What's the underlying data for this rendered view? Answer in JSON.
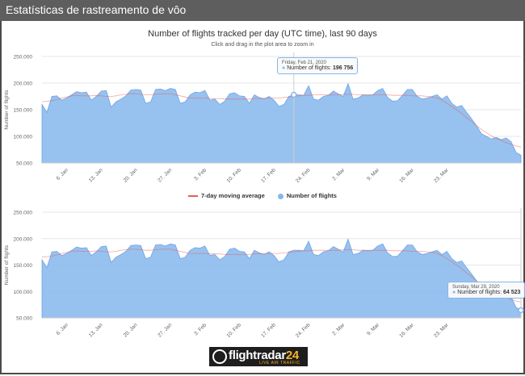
{
  "window": {
    "title": "Estatísticas de rastreamento de vôo"
  },
  "chart_header": {
    "title": "Number of flights tracked per day (UTC time), last 90 days",
    "subtitle": "Click and drag in the plot area to zoom in"
  },
  "legend": {
    "items": [
      "7-day moving average",
      "Number of flights"
    ]
  },
  "colors": {
    "area": "#85b6ec",
    "moving_average": "#f05a4b",
    "titlebar": "#5e5e5e"
  },
  "tooltips": {
    "top": {
      "date": "Friday, Feb 21, 2020",
      "label": "Number of flights:",
      "value": "196 756"
    },
    "bottom": {
      "date": "Sunday, Mar 29, 2020",
      "label": "Number of flights:",
      "value": "64 523"
    }
  },
  "logo": {
    "brand": "flightradar",
    "brand_num": "24",
    "tagline": "LIVE AIR TRAFFIC"
  },
  "chart_data": [
    {
      "type": "area",
      "ylabel": "Number of flights",
      "ylim": [
        50000,
        250000
      ],
      "yticks": [
        "250.000",
        "200.000",
        "150.000",
        "100.000",
        "50.000"
      ],
      "xtick_labels": [
        "6. Jan",
        "13. Jan",
        "20. Jan",
        "27. Jan",
        "3. Feb",
        "10. Feb",
        "17. Feb",
        "24. Feb",
        "2. Mar",
        "9. Mar",
        "16. Mar",
        "23. Mar"
      ],
      "x_start": "Jan 1, 2020",
      "x_end": "Mar 29, 2020",
      "series": [
        {
          "name": "Number of flights",
          "values": [
            160000,
            145000,
            175000,
            176000,
            168000,
            172000,
            178000,
            184000,
            182000,
            183000,
            168000,
            175000,
            185000,
            186000,
            155000,
            165000,
            170000,
            176000,
            187000,
            188000,
            187000,
            162000,
            165000,
            188000,
            189000,
            186000,
            190000,
            188000,
            162000,
            165000,
            178000,
            183000,
            182000,
            186000,
            168000,
            170000,
            160000,
            166000,
            180000,
            182000,
            176000,
            175000,
            162000,
            178000,
            173000,
            170000,
            175000,
            168000,
            156000,
            160000,
            175000,
            178000,
            178000,
            177000,
            195000,
            170000,
            168000,
            175000,
            177000,
            185000,
            180000,
            175000,
            199000,
            170000,
            172000,
            178000,
            177000,
            178000,
            186000,
            190000,
            173000,
            166000,
            167000,
            177000,
            188000,
            188000,
            175000,
            170000,
            172000,
            175000,
            178000,
            170000,
            176000,
            162000,
            155000,
            158000,
            145000,
            133000,
            120000,
            105000,
            100000,
            95000,
            98000,
            94000,
            97000,
            90000,
            70000,
            64523
          ]
        },
        {
          "name": "7-day moving average",
          "values": [
            165000,
            166000,
            167000,
            169000,
            172000,
            174000,
            176000,
            177000,
            176000,
            176000,
            176000,
            177000,
            176000,
            175000,
            175000,
            176000,
            178000,
            179000,
            180000,
            180000,
            179000,
            178000,
            178000,
            179000,
            180000,
            180000,
            180000,
            178000,
            176000,
            174000,
            172000,
            172000,
            172000,
            172000,
            171000,
            171000,
            171000,
            170000,
            170000,
            170000,
            170000,
            170000,
            170000,
            171000,
            171000,
            172000,
            172000,
            172000,
            172000,
            173000,
            174000,
            175000,
            176000,
            177000,
            177000,
            178000,
            178000,
            178000,
            178000,
            178000,
            178000,
            179000,
            179000,
            179000,
            178000,
            178000,
            178000,
            178000,
            178000,
            178000,
            178000,
            177000,
            177000,
            177000,
            177000,
            176000,
            176000,
            176000,
            175000,
            174000,
            172000,
            168000,
            162000,
            156000,
            150000,
            143000,
            135000,
            128000,
            120000,
            113000,
            107000,
            101000,
            96000,
            92000,
            88000,
            85000,
            82000,
            80000
          ]
        }
      ],
      "grid": true
    },
    {
      "type": "area",
      "ylabel": "Number of flights",
      "ylim": [
        50000,
        250000
      ],
      "yticks": [
        "250.000",
        "200.000",
        "150.000",
        "100.000",
        "50.000"
      ],
      "xtick_labels": [
        "6. Jan",
        "13. Jan",
        "20. Jan",
        "27. Jan",
        "3. Feb",
        "10. Feb",
        "17. Feb",
        "24. Feb",
        "2. Mar",
        "9. Mar",
        "16. Mar",
        "23. Mar"
      ],
      "grid": true
    }
  ]
}
